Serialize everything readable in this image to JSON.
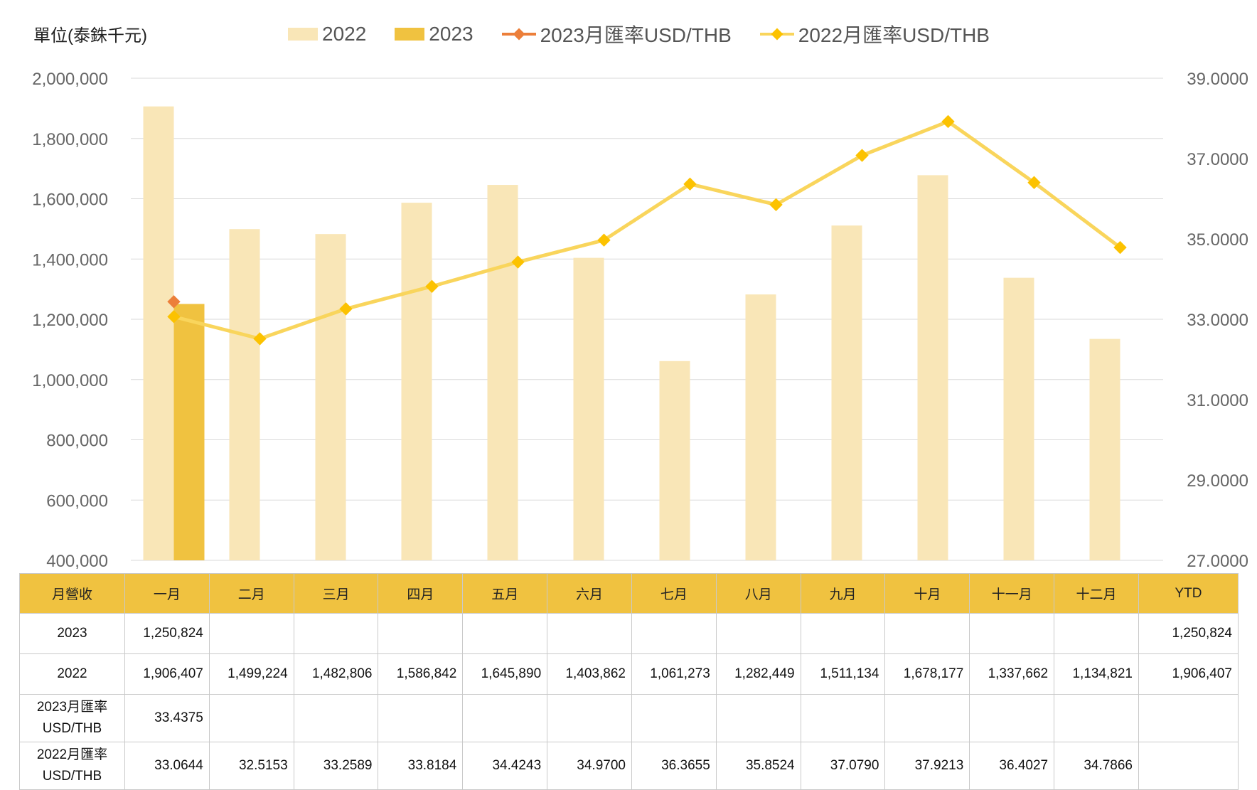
{
  "chart_data": {
    "type": "bar+line",
    "unit_label": "單位(泰銖千元)",
    "categories": [
      "一月",
      "二月",
      "三月",
      "四月",
      "五月",
      "六月",
      "七月",
      "八月",
      "九月",
      "十月",
      "十一月",
      "十二月"
    ],
    "left_axis": {
      "min": 400000,
      "max": 2000000,
      "step": 200000,
      "ticks": [
        "400,000",
        "600,000",
        "800,000",
        "1,000,000",
        "1,200,000",
        "1,400,000",
        "1,600,000",
        "1,800,000",
        "2,000,000"
      ]
    },
    "right_axis": {
      "min": 27,
      "max": 39,
      "step": 2,
      "ticks": [
        "27.0000",
        "29.0000",
        "31.0000",
        "33.0000",
        "35.0000",
        "37.0000",
        "39.0000"
      ]
    },
    "grid": true,
    "legend_position": "top",
    "legend": [
      "2022",
      "2023",
      "2023月匯率USD/THB",
      "2022月匯率USD/THB"
    ],
    "series": [
      {
        "name": "2022",
        "kind": "bar",
        "axis": "left",
        "color": "#f9e6b7",
        "values": [
          1906407,
          1499224,
          1482806,
          1586842,
          1645890,
          1403862,
          1061273,
          1282449,
          1511134,
          1678177,
          1337662,
          1134821
        ]
      },
      {
        "name": "2023",
        "kind": "bar",
        "axis": "left",
        "color": "#f0c240",
        "values": [
          1250824,
          null,
          null,
          null,
          null,
          null,
          null,
          null,
          null,
          null,
          null,
          null
        ]
      },
      {
        "name": "2023月匯率USD/THB",
        "kind": "line",
        "axis": "right",
        "color": "#ec7f3a",
        "values": [
          33.4375,
          null,
          null,
          null,
          null,
          null,
          null,
          null,
          null,
          null,
          null,
          null
        ]
      },
      {
        "name": "2022月匯率USD/THB",
        "kind": "line",
        "axis": "right",
        "color": "#f9d55c",
        "marker_color": "#fcc200",
        "values": [
          33.0644,
          32.5153,
          33.2589,
          33.8184,
          34.4243,
          34.97,
          36.3655,
          35.8524,
          37.079,
          37.9213,
          36.4027,
          34.7866
        ]
      }
    ]
  },
  "table": {
    "header_label": "月營收",
    "months": [
      "一月",
      "二月",
      "三月",
      "四月",
      "五月",
      "六月",
      "七月",
      "八月",
      "九月",
      "十月",
      "十一月",
      "十二月"
    ],
    "ytd_label": "YTD",
    "rows": [
      {
        "label": "2023",
        "cells": [
          "1,250,824",
          "",
          "",
          "",
          "",
          "",
          "",
          "",
          "",
          "",
          "",
          ""
        ],
        "ytd": "1,250,824"
      },
      {
        "label": "2022",
        "cells": [
          "1,906,407",
          "1,499,224",
          "1,482,806",
          "1,586,842",
          "1,645,890",
          "1,403,862",
          "1,061,273",
          "1,282,449",
          "1,511,134",
          "1,678,177",
          "1,337,662",
          "1,134,821"
        ],
        "ytd": "1,906,407"
      },
      {
        "label_line1": "2023月匯率",
        "label_line2": "USD/THB",
        "cells": [
          "33.4375",
          "",
          "",
          "",
          "",
          "",
          "",
          "",
          "",
          "",
          "",
          ""
        ],
        "ytd": ""
      },
      {
        "label_line1": "2022月匯率",
        "label_line2": "USD/THB",
        "cells": [
          "33.0644",
          "32.5153",
          "33.2589",
          "33.8184",
          "34.4243",
          "34.9700",
          "36.3655",
          "35.8524",
          "37.0790",
          "37.9213",
          "36.4027",
          "34.7866"
        ],
        "ytd": ""
      }
    ]
  }
}
